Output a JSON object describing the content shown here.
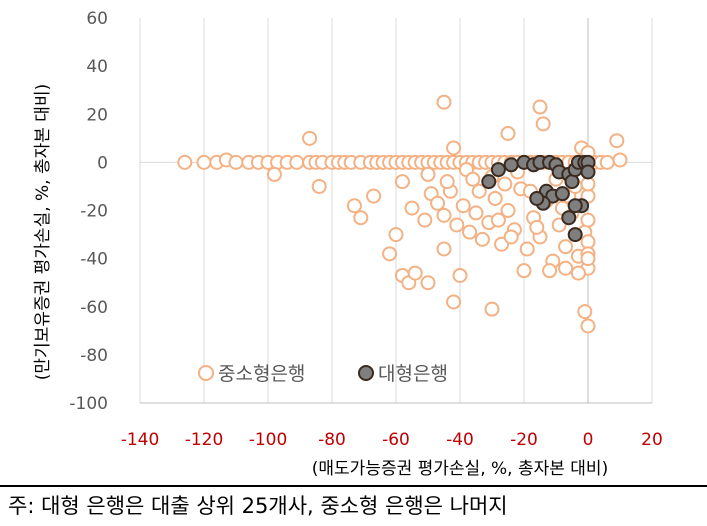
{
  "chart_data": {
    "type": "scatter",
    "xlabel": "(매도가능증권 평가손실, %, 총자본 대비)",
    "ylabel": "(만기보유증권 평가손실, %, 총자본 대비)",
    "xlim": [
      -140,
      20
    ],
    "ylim": [
      -100,
      60
    ],
    "xticks": [
      -140,
      -120,
      -100,
      -80,
      -60,
      -40,
      -20,
      0,
      20
    ],
    "yticks": [
      60,
      40,
      20,
      0,
      -20,
      -40,
      -60,
      -80,
      -100
    ],
    "grid": "vertical",
    "legend_position": "bottom-left",
    "series": [
      {
        "name": "중소형은행",
        "marker": "hollow-circle",
        "color": "#f4b183",
        "points": [
          [
            -126,
            0
          ],
          [
            -120,
            0
          ],
          [
            -116,
            0
          ],
          [
            -113,
            1
          ],
          [
            -110,
            0
          ],
          [
            -106,
            0
          ],
          [
            -103,
            0
          ],
          [
            -100,
            0
          ],
          [
            -97,
            0
          ],
          [
            -94,
            0
          ],
          [
            -91,
            0
          ],
          [
            -87,
            0
          ],
          [
            -85,
            0
          ],
          [
            -83,
            0
          ],
          [
            -80,
            0
          ],
          [
            -78,
            0
          ],
          [
            -76,
            0
          ],
          [
            -74,
            0
          ],
          [
            -71,
            0
          ],
          [
            -68,
            0
          ],
          [
            -66,
            0
          ],
          [
            -64,
            0
          ],
          [
            -62,
            0
          ],
          [
            -60,
            0
          ],
          [
            -58,
            0
          ],
          [
            -56,
            0
          ],
          [
            -54,
            0
          ],
          [
            -52,
            0
          ],
          [
            -50,
            0
          ],
          [
            -48,
            0
          ],
          [
            -46,
            0
          ],
          [
            -44,
            0
          ],
          [
            -42,
            0
          ],
          [
            -40,
            0
          ],
          [
            -38,
            0
          ],
          [
            -36,
            0
          ],
          [
            -34,
            0
          ],
          [
            -32,
            0
          ],
          [
            -30,
            0
          ],
          [
            -28,
            0
          ],
          [
            -26,
            0
          ],
          [
            -24,
            0
          ],
          [
            -22,
            0
          ],
          [
            -20,
            0
          ],
          [
            -18,
            0
          ],
          [
            -16,
            0
          ],
          [
            -14,
            0
          ],
          [
            -12,
            0
          ],
          [
            -10,
            0
          ],
          [
            -8,
            0
          ],
          [
            -6,
            0
          ],
          [
            -4,
            0
          ],
          [
            -2,
            0
          ],
          [
            0,
            0
          ],
          [
            2,
            0
          ],
          [
            4,
            0
          ],
          [
            6,
            0
          ],
          [
            10,
            1
          ],
          [
            -45,
            25
          ],
          [
            -15,
            23
          ],
          [
            -87,
            10
          ],
          [
            -25,
            12
          ],
          [
            -14,
            16
          ],
          [
            9,
            9
          ],
          [
            -2,
            6
          ],
          [
            0,
            4
          ],
          [
            -42,
            6
          ],
          [
            -98,
            -5
          ],
          [
            -84,
            -10
          ],
          [
            -73,
            -18
          ],
          [
            -71,
            -23
          ],
          [
            -67,
            -14
          ],
          [
            -58,
            -8
          ],
          [
            -55,
            -19
          ],
          [
            -51,
            -24
          ],
          [
            -49,
            -13
          ],
          [
            -47,
            -17
          ],
          [
            -45,
            -22
          ],
          [
            -43,
            -12
          ],
          [
            -41,
            -26
          ],
          [
            -39,
            -18
          ],
          [
            -37,
            -29
          ],
          [
            -35,
            -21
          ],
          [
            -33,
            -32
          ],
          [
            -31,
            -25
          ],
          [
            -29,
            -15
          ],
          [
            -27,
            -34
          ],
          [
            -25,
            -20
          ],
          [
            -23,
            -28
          ],
          [
            -21,
            -11
          ],
          [
            -19,
            -36
          ],
          [
            -17,
            -23
          ],
          [
            -15,
            -31
          ],
          [
            -13,
            -16
          ],
          [
            -11,
            -41
          ],
          [
            -9,
            -26
          ],
          [
            -7,
            -35
          ],
          [
            -5,
            -21
          ],
          [
            -3,
            -39
          ],
          [
            -1,
            -29
          ],
          [
            0,
            -44
          ],
          [
            0,
            -33
          ],
          [
            0,
            -24
          ],
          [
            -60,
            -30
          ],
          [
            -62,
            -38
          ],
          [
            -58,
            -47
          ],
          [
            -56,
            -50
          ],
          [
            -54,
            -46
          ],
          [
            -50,
            -50
          ],
          [
            -45,
            -36
          ],
          [
            -40,
            -47
          ],
          [
            -42,
            -58
          ],
          [
            -30,
            -61
          ],
          [
            -20,
            -45
          ],
          [
            -12,
            -45
          ],
          [
            -7,
            -44
          ],
          [
            -3,
            -46
          ],
          [
            0,
            -38
          ],
          [
            0,
            -40
          ],
          [
            -1,
            -62
          ],
          [
            0,
            -68
          ],
          [
            -50,
            -5
          ],
          [
            -44,
            -8
          ],
          [
            -38,
            -3
          ],
          [
            -30,
            -6
          ],
          [
            -26,
            -9
          ],
          [
            -22,
            -4
          ],
          [
            -18,
            -12
          ],
          [
            -10,
            -7
          ],
          [
            -6,
            -14
          ],
          [
            -34,
            -12
          ],
          [
            -36,
            -7
          ],
          [
            -28,
            -24
          ],
          [
            -24,
            -31
          ],
          [
            -16,
            -27
          ],
          [
            -8,
            -19
          ],
          [
            -4,
            -10
          ],
          [
            0,
            -14
          ],
          [
            0,
            -9
          ]
        ]
      },
      {
        "name": "대형은행",
        "marker": "filled-circle",
        "color": "#7f7f7f",
        "points": [
          [
            -31,
            -8
          ],
          [
            -28,
            -3
          ],
          [
            -24,
            -1
          ],
          [
            -20,
            0
          ],
          [
            -17,
            -1
          ],
          [
            -15,
            0
          ],
          [
            -12,
            0
          ],
          [
            -10,
            -1
          ],
          [
            -13,
            -12
          ],
          [
            -11,
            -14
          ],
          [
            -14,
            -17
          ],
          [
            -16,
            -15
          ],
          [
            -9,
            -4
          ],
          [
            -6,
            -5
          ],
          [
            -5,
            -8
          ],
          [
            -4,
            -3
          ],
          [
            -3,
            0
          ],
          [
            -1,
            0
          ],
          [
            0,
            0
          ],
          [
            0,
            -4
          ],
          [
            -2,
            -18
          ],
          [
            -4,
            -18
          ],
          [
            -6,
            -23
          ],
          [
            -4,
            -30
          ],
          [
            -8,
            -13
          ]
        ]
      }
    ]
  },
  "note": "주: 대형 은행은 대출 상위 25개사, 중소형 은행은 나머지"
}
